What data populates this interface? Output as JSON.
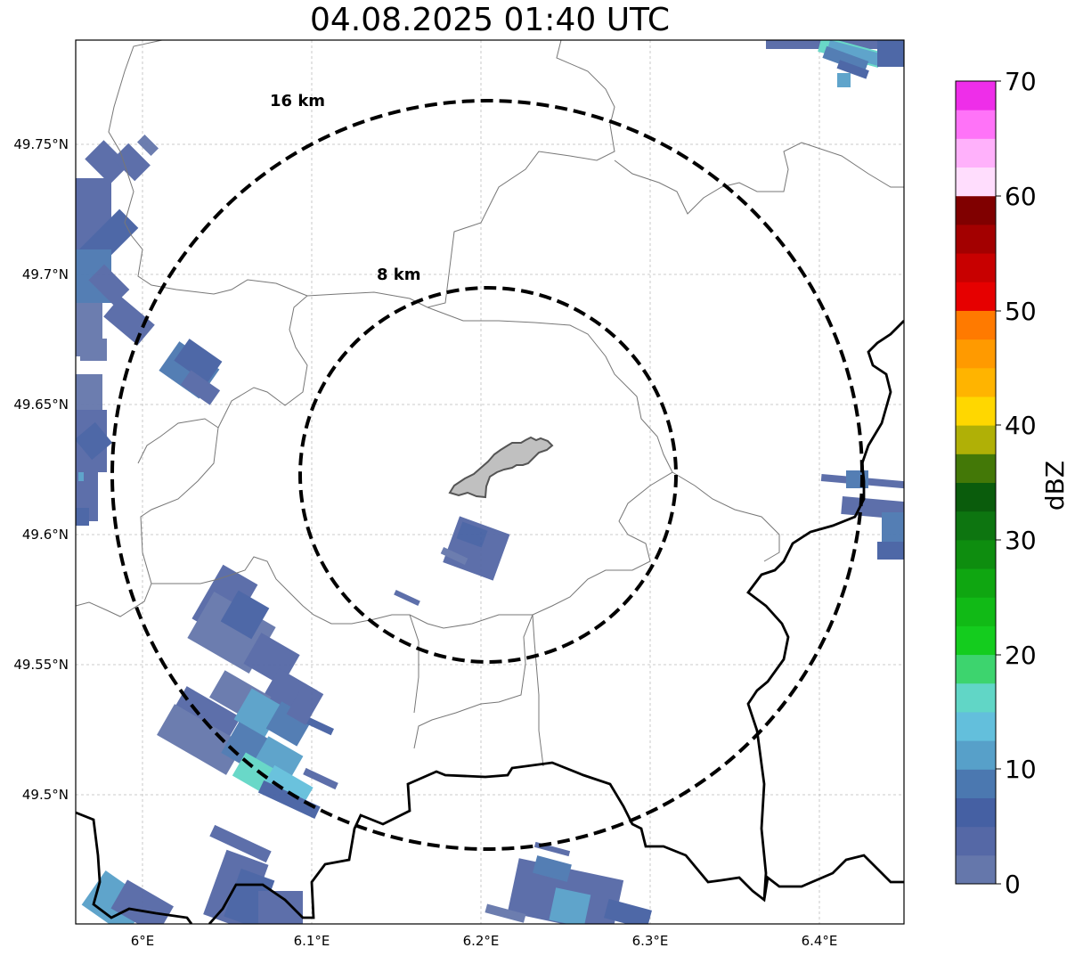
{
  "title": "04.08.2025 01:40 UTC",
  "map": {
    "lon_ticks": [
      "6°E",
      "6.1°E",
      "6.2°E",
      "6.3°E",
      "6.4°E"
    ],
    "lat_ticks": [
      "49.75°N",
      "49.7°N",
      "49.65°N",
      "49.6°N",
      "49.55°N",
      "49.5°N"
    ],
    "rings": [
      {
        "label": "16 km",
        "radius_km": 16
      },
      {
        "label": "8 km",
        "radius_km": 8
      }
    ],
    "grid": true
  },
  "colorbar": {
    "label": "dBZ",
    "ticks": [
      "0",
      "10",
      "20",
      "30",
      "40",
      "50",
      "60",
      "70"
    ],
    "colors": [
      "#6577ab",
      "#5568a6",
      "#4560a3",
      "#4b78b0",
      "#57a0c9",
      "#63bfdc",
      "#61d6c6",
      "#3dd46e",
      "#14cc1e",
      "#11ba16",
      "#0fa611",
      "#0e8d0f",
      "#0d7510",
      "#0a5c0c",
      "#437807",
      "#b0b006",
      "#ffd700",
      "#ffb400",
      "#ff9a00",
      "#ff7a00",
      "#e60000",
      "#c80000",
      "#a30000",
      "#800000",
      "#ffddfd",
      "#ffb1fb",
      "#ff73f8",
      "#ee2ee9"
    ],
    "colors_semantic": "28 bins of 2.5 dBZ from 0 to 70"
  }
}
